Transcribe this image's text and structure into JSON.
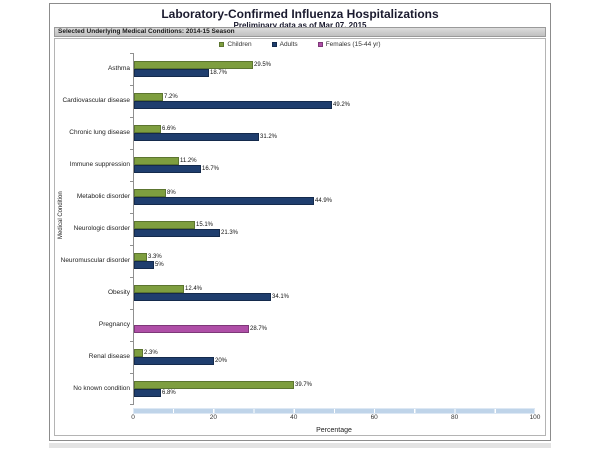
{
  "header": {
    "title": "Laboratory-Confirmed Influenza Hospitalizations",
    "subtitle": "Preliminary data as of Mar 07, 2015",
    "section_label": "Selected Underlying Medical Conditions: 2014-15 Season"
  },
  "chart_data": {
    "type": "bar",
    "orientation": "horizontal",
    "title": "Laboratory-Confirmed Influenza Hospitalizations",
    "subtitle": "Preliminary data as of Mar 07, 2015",
    "xlabel": "Percentage",
    "ylabel": "Medical Condition",
    "xlim": [
      0,
      100
    ],
    "xticks": [
      0,
      20,
      40,
      60,
      80,
      100
    ],
    "legend_position": "top",
    "grid": false,
    "series": [
      {
        "name": "Children",
        "color": "#7E9E3F",
        "border_color": "#5C7530"
      },
      {
        "name": "Adults",
        "color": "#1F3E6E",
        "border_color": "#142A4C"
      },
      {
        "name": "Females (15-44 yr)",
        "color": "#AF4FA7",
        "border_color": "#7D3878"
      }
    ],
    "categories": [
      "Asthma",
      "Cardiovascular disease",
      "Chronic lung disease",
      "Immune suppression",
      "Metabolic disorder",
      "Neurologic disorder",
      "Neuromuscular disorder",
      "Obesity",
      "Pregnancy",
      "Renal disease",
      "No known condition"
    ],
    "rows": [
      {
        "category": "Asthma",
        "bars": [
          {
            "series": "Children",
            "value": 29.5,
            "label": "29.5%"
          },
          {
            "series": "Adults",
            "value": 18.7,
            "label": "18.7%"
          }
        ]
      },
      {
        "category": "Cardiovascular disease",
        "bars": [
          {
            "series": "Children",
            "value": 7.2,
            "label": "7.2%"
          },
          {
            "series": "Adults",
            "value": 49.2,
            "label": "49.2%"
          }
        ]
      },
      {
        "category": "Chronic lung disease",
        "bars": [
          {
            "series": "Children",
            "value": 6.6,
            "label": "6.6%"
          },
          {
            "series": "Adults",
            "value": 31.2,
            "label": "31.2%"
          }
        ]
      },
      {
        "category": "Immune suppression",
        "bars": [
          {
            "series": "Children",
            "value": 11.2,
            "label": "11.2%"
          },
          {
            "series": "Adults",
            "value": 16.7,
            "label": "16.7%"
          }
        ]
      },
      {
        "category": "Metabolic disorder",
        "bars": [
          {
            "series": "Children",
            "value": 8,
            "label": "8%"
          },
          {
            "series": "Adults",
            "value": 44.9,
            "label": "44.9%"
          }
        ]
      },
      {
        "category": "Neurologic disorder",
        "bars": [
          {
            "series": "Children",
            "value": 15.1,
            "label": "15.1%"
          },
          {
            "series": "Adults",
            "value": 21.3,
            "label": "21.3%"
          }
        ]
      },
      {
        "category": "Neuromuscular disorder",
        "bars": [
          {
            "series": "Children",
            "value": 3.3,
            "label": "3.3%"
          },
          {
            "series": "Adults",
            "value": 5,
            "label": "5%"
          }
        ]
      },
      {
        "category": "Obesity",
        "bars": [
          {
            "series": "Children",
            "value": 12.4,
            "label": "12.4%"
          },
          {
            "series": "Adults",
            "value": 34.1,
            "label": "34.1%"
          }
        ]
      },
      {
        "category": "Pregnancy",
        "bars": [
          {
            "series": "Females (15-44 yr)",
            "value": 28.7,
            "label": "28.7%"
          }
        ]
      },
      {
        "category": "Renal disease",
        "bars": [
          {
            "series": "Children",
            "value": 2.3,
            "label": "2.3%"
          },
          {
            "series": "Adults",
            "value": 20,
            "label": "20%"
          }
        ]
      },
      {
        "category": "No known condition",
        "bars": [
          {
            "series": "Children",
            "value": 39.7,
            "label": "39.7%"
          },
          {
            "series": "Adults",
            "value": 6.8,
            "label": "6.8%"
          }
        ]
      }
    ],
    "scrollbar_color": "#BFD4E9"
  }
}
